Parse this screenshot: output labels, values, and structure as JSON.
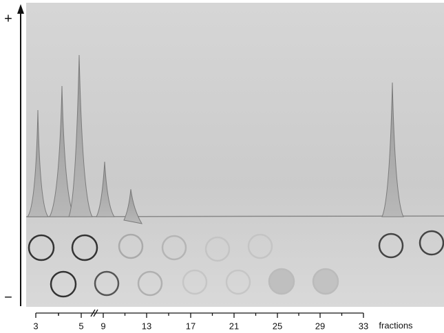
{
  "figure": {
    "polarity_plus": "+",
    "polarity_minus": "−",
    "fraction_ticks": [
      "3",
      "5",
      "9",
      "13",
      "17",
      "21",
      "25",
      "29",
      "33"
    ],
    "axis_label": "fractions"
  }
}
